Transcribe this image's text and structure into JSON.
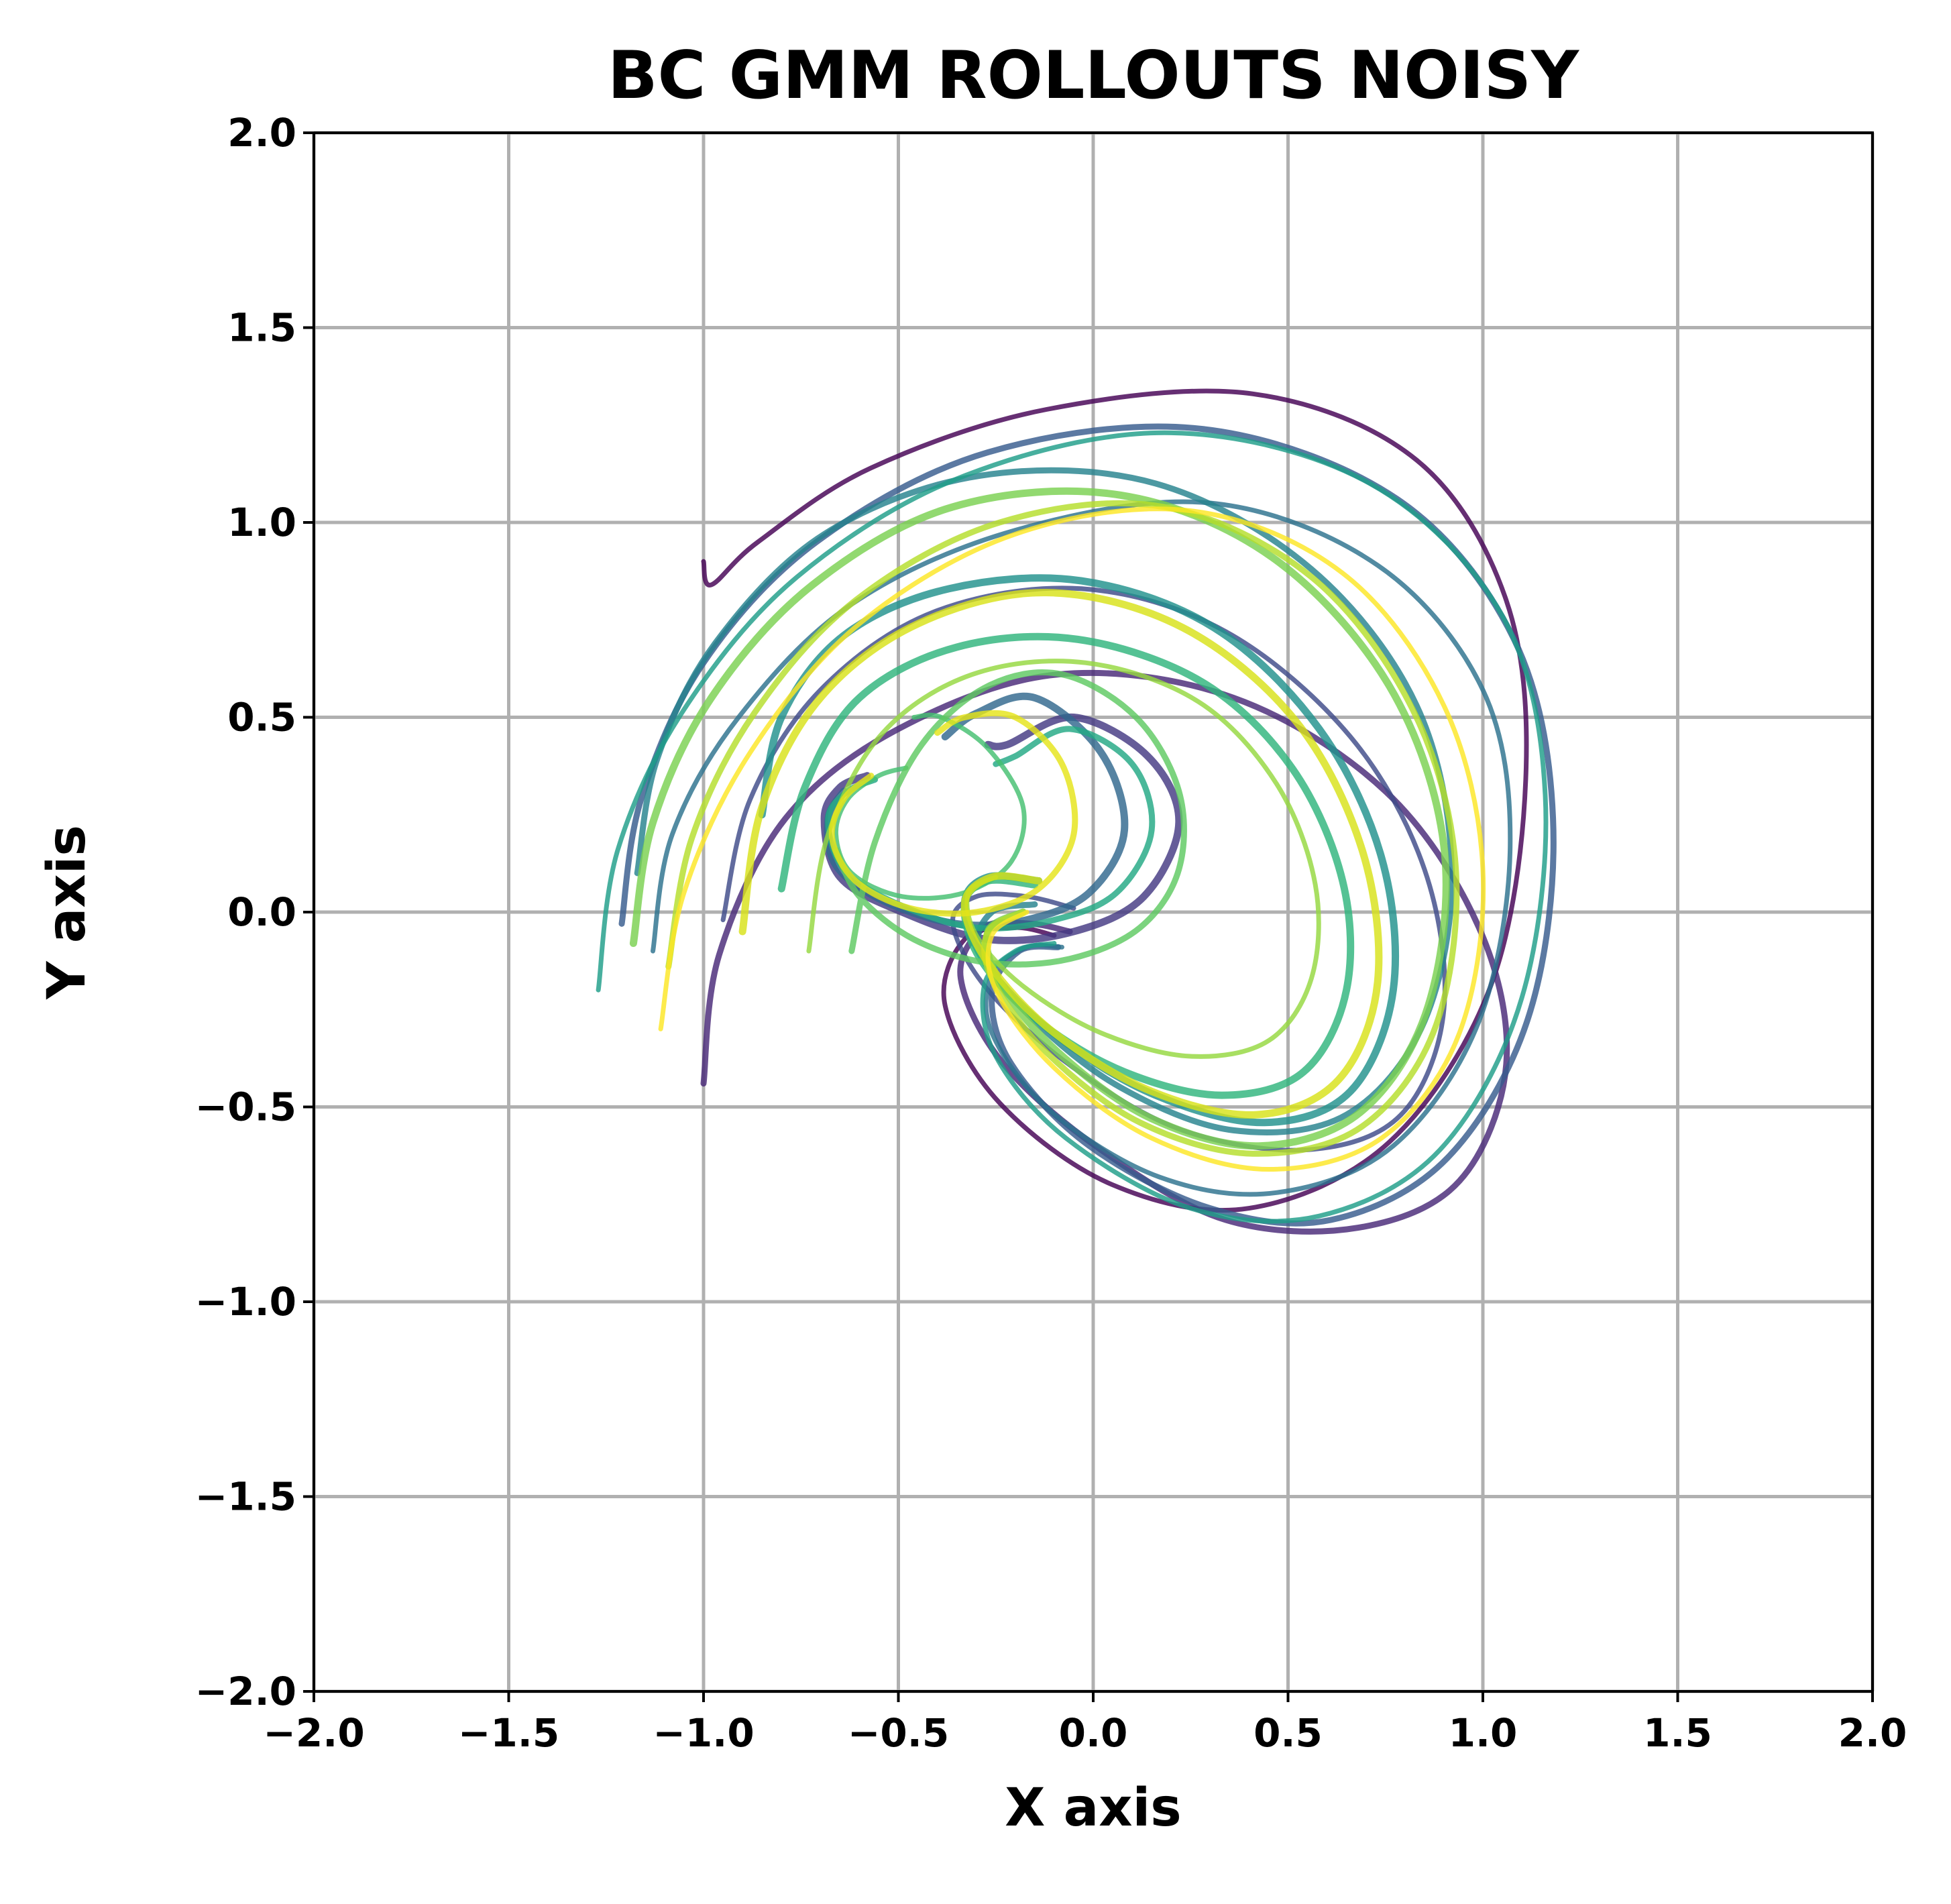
{
  "chart_data": {
    "type": "line",
    "title": "BC GMM ROLLOUTS NOISY",
    "xlabel": "X axis",
    "ylabel": "Y axis",
    "xlim": [
      -2.0,
      2.0
    ],
    "ylim": [
      -2.0,
      2.0
    ],
    "xticks": [
      -2.0,
      -1.5,
      -1.0,
      -0.5,
      0.0,
      0.5,
      1.0,
      1.5,
      2.0
    ],
    "yticks": [
      -2.0,
      -1.5,
      -1.0,
      -0.5,
      0.0,
      0.5,
      1.0,
      1.5,
      2.0
    ],
    "xtick_labels": [
      "−2.0",
      "−1.5",
      "−1.0",
      "−0.5",
      "0.0",
      "0.5",
      "1.0",
      "1.5",
      "2.0"
    ],
    "ytick_labels": [
      "−2.0",
      "−1.5",
      "−1.0",
      "−0.5",
      "0.0",
      "0.5",
      "1.0",
      "1.5",
      "2.0"
    ],
    "grid": true,
    "legend": "none",
    "colormap": "viridis",
    "vortex_center": [
      -0.48,
      0.26
    ],
    "series": [
      {
        "color": "#440154",
        "x": [
          -1.0,
          -0.98,
          -0.86,
          -0.57,
          -0.12,
          0.41,
          0.83,
          1.06,
          1.11,
          1.02,
          0.76,
          0.4,
          0.05,
          -0.24,
          -0.38,
          -0.33,
          -0.2,
          -0.1
        ],
        "y": [
          0.9,
          0.84,
          0.95,
          1.14,
          1.29,
          1.33,
          1.16,
          0.8,
          0.34,
          -0.19,
          -0.59,
          -0.76,
          -0.7,
          -0.49,
          -0.24,
          -0.07,
          -0.04,
          -0.06
        ]
      },
      {
        "color": "#482878",
        "x": [
          -1.0,
          -0.96,
          -0.79,
          -0.5,
          -0.09,
          0.36,
          0.75,
          0.99,
          1.06,
          0.94,
          0.68,
          0.34,
          0.02,
          -0.23,
          -0.34,
          -0.28,
          -0.16,
          -0.06
        ],
        "y": [
          -0.44,
          -0.11,
          0.24,
          0.47,
          0.61,
          0.55,
          0.31,
          -0.04,
          -0.39,
          -0.69,
          -0.81,
          -0.79,
          -0.61,
          -0.39,
          -0.17,
          -0.04,
          -0.03,
          -0.05
        ]
      },
      {
        "color": "#443983",
        "x": [
          -0.27,
          -0.22,
          -0.05,
          0.14,
          0.22,
          0.13,
          -0.05,
          -0.27,
          -0.49,
          -0.65,
          -0.69,
          -0.65,
          -0.58
        ],
        "y": [
          0.43,
          0.43,
          0.5,
          0.4,
          0.23,
          0.04,
          -0.05,
          -0.07,
          0.0,
          0.09,
          0.24,
          0.32,
          0.35
        ]
      },
      {
        "color": "#3e4a89",
        "x": [
          -0.95,
          -0.88,
          -0.7,
          -0.41,
          -0.03,
          0.34,
          0.66,
          0.85,
          0.9,
          0.79,
          0.55,
          0.23,
          -0.05,
          -0.27,
          -0.36,
          -0.3,
          -0.17,
          -0.05
        ],
        "y": [
          -0.02,
          0.29,
          0.57,
          0.77,
          0.83,
          0.72,
          0.45,
          0.11,
          -0.25,
          -0.52,
          -0.61,
          -0.56,
          -0.4,
          -0.2,
          -0.03,
          0.04,
          0.04,
          0.01
        ]
      },
      {
        "color": "#375b8d",
        "x": [
          -1.21,
          -1.16,
          -1.0,
          -0.71,
          -0.27,
          0.28,
          0.78,
          1.08,
          1.18,
          1.12,
          0.91,
          0.61,
          0.3,
          -0.01,
          -0.21,
          -0.26,
          -0.19,
          -0.09
        ],
        "y": [
          -0.03,
          0.29,
          0.64,
          0.95,
          1.18,
          1.24,
          1.06,
          0.7,
          0.24,
          -0.26,
          -0.63,
          -0.79,
          -0.76,
          -0.6,
          -0.39,
          -0.21,
          -0.1,
          -0.09
        ]
      },
      {
        "color": "#31688e",
        "x": [
          -0.38,
          -0.3,
          -0.15,
          0.02,
          0.08,
          -0.01,
          -0.17,
          -0.35,
          -0.54,
          -0.66,
          -0.68,
          -0.64
        ],
        "y": [
          0.45,
          0.51,
          0.55,
          0.41,
          0.21,
          0.05,
          -0.02,
          -0.03,
          0.03,
          0.12,
          0.24,
          0.31
        ]
      },
      {
        "color": "#2c728e",
        "x": [
          -1.13,
          -1.08,
          -0.91,
          -0.62,
          -0.2,
          0.3,
          0.73,
          1.0,
          1.07,
          0.99,
          0.77,
          0.47,
          0.17,
          -0.11,
          -0.26,
          -0.26,
          -0.17,
          -0.08
        ],
        "y": [
          -0.1,
          0.2,
          0.5,
          0.79,
          0.98,
          1.05,
          0.89,
          0.57,
          0.17,
          -0.28,
          -0.6,
          -0.72,
          -0.68,
          -0.51,
          -0.31,
          -0.16,
          -0.09,
          -0.09
        ]
      },
      {
        "color": "#26828e",
        "x": [
          -1.17,
          -1.12,
          -0.97,
          -0.69,
          -0.29,
          0.16,
          0.56,
          0.83,
          0.92,
          0.85,
          0.65,
          0.36,
          0.07,
          -0.16,
          -0.29,
          -0.26,
          -0.15
        ],
        "y": [
          0.1,
          0.39,
          0.69,
          0.97,
          1.12,
          1.1,
          0.88,
          0.53,
          0.11,
          -0.28,
          -0.52,
          -0.56,
          -0.45,
          -0.27,
          -0.1,
          0.0,
          0.02
        ]
      },
      {
        "color": "#21918c",
        "x": [
          -0.85,
          -0.8,
          -0.64,
          -0.37,
          -0.03,
          0.31,
          0.58,
          0.74,
          0.77,
          0.66,
          0.44,
          0.16,
          -0.09,
          -0.27,
          -0.33,
          -0.27,
          -0.14
        ],
        "y": [
          0.25,
          0.5,
          0.71,
          0.83,
          0.85,
          0.73,
          0.47,
          0.14,
          -0.2,
          -0.46,
          -0.54,
          -0.47,
          -0.32,
          -0.14,
          0.02,
          0.09,
          0.08
        ]
      },
      {
        "color": "#1f9e89",
        "x": [
          -1.27,
          -1.22,
          -1.05,
          -0.76,
          -0.33,
          0.2,
          0.71,
          1.05,
          1.16,
          1.1,
          0.89,
          0.58,
          0.25,
          -0.07,
          -0.25,
          -0.28,
          -0.2,
          -0.1
        ],
        "y": [
          -0.2,
          0.16,
          0.52,
          0.86,
          1.12,
          1.23,
          1.1,
          0.76,
          0.3,
          -0.22,
          -0.61,
          -0.78,
          -0.76,
          -0.58,
          -0.37,
          -0.19,
          -0.1,
          -0.08
        ]
      },
      {
        "color": "#22a884",
        "x": [
          -0.25,
          -0.2,
          -0.06,
          0.1,
          0.15,
          0.06,
          -0.1,
          -0.3,
          -0.5,
          -0.64,
          -0.68,
          -0.63,
          -0.56
        ],
        "y": [
          0.38,
          0.4,
          0.47,
          0.38,
          0.21,
          0.05,
          -0.02,
          -0.04,
          0.02,
          0.11,
          0.24,
          0.31,
          0.34
        ]
      },
      {
        "color": "#2fb47c",
        "x": [
          -0.8,
          -0.74,
          -0.6,
          -0.35,
          -0.04,
          0.28,
          0.51,
          0.64,
          0.65,
          0.54,
          0.33,
          0.08,
          -0.14,
          -0.29,
          -0.33,
          -0.27,
          -0.15
        ],
        "y": [
          0.06,
          0.32,
          0.55,
          0.68,
          0.7,
          0.59,
          0.37,
          0.08,
          -0.2,
          -0.41,
          -0.47,
          -0.41,
          -0.28,
          -0.12,
          0.02,
          0.08,
          0.07
        ]
      },
      {
        "color": "#44bf70",
        "x": [
          -0.46,
          -0.39,
          -0.27,
          -0.18,
          -0.21,
          -0.33,
          -0.49,
          -0.62,
          -0.66,
          -0.63,
          -0.55,
          -0.48
        ],
        "y": [
          0.5,
          0.5,
          0.42,
          0.27,
          0.13,
          0.05,
          0.04,
          0.1,
          0.2,
          0.29,
          0.35,
          0.37
        ]
      },
      {
        "color": "#5ec962",
        "x": [
          -0.62,
          -0.56,
          -0.44,
          -0.27,
          -0.08,
          0.11,
          0.22,
          0.22,
          0.12,
          -0.06,
          -0.27,
          -0.46,
          -0.6,
          -0.66
        ],
        "y": [
          -0.1,
          0.18,
          0.43,
          0.58,
          0.61,
          0.5,
          0.31,
          0.11,
          -0.04,
          -0.12,
          -0.13,
          -0.07,
          0.04,
          0.16
        ]
      },
      {
        "color": "#7ad151",
        "x": [
          -1.18,
          -1.13,
          -0.98,
          -0.72,
          -0.36,
          0.07,
          0.46,
          0.76,
          0.9,
          0.86,
          0.69,
          0.43,
          0.15,
          -0.09,
          -0.24,
          -0.27,
          -0.18
        ],
        "y": [
          -0.08,
          0.23,
          0.55,
          0.84,
          1.04,
          1.07,
          0.91,
          0.58,
          0.17,
          -0.24,
          -0.51,
          -0.6,
          -0.53,
          -0.36,
          -0.18,
          -0.05,
          0.0
        ]
      },
      {
        "color": "#95d840",
        "x": [
          -0.73,
          -0.68,
          -0.54,
          -0.31,
          -0.02,
          0.27,
          0.47,
          0.57,
          0.56,
          0.45,
          0.25,
          0.02,
          -0.18,
          -0.3,
          -0.32,
          -0.25
        ],
        "y": [
          -0.1,
          0.2,
          0.46,
          0.61,
          0.64,
          0.54,
          0.33,
          0.07,
          -0.17,
          -0.33,
          -0.37,
          -0.31,
          -0.19,
          -0.06,
          0.05,
          0.09
        ]
      },
      {
        "color": "#b5de2b",
        "x": [
          -1.09,
          -1.03,
          -0.87,
          -0.61,
          -0.24,
          0.18,
          0.56,
          0.82,
          0.93,
          0.88,
          0.69,
          0.41,
          0.12,
          -0.12,
          -0.26,
          -0.27,
          -0.18
        ],
        "y": [
          -0.14,
          0.19,
          0.51,
          0.8,
          1.0,
          1.04,
          0.86,
          0.52,
          0.12,
          -0.29,
          -0.55,
          -0.62,
          -0.54,
          -0.36,
          -0.17,
          -0.05,
          0.0
        ]
      },
      {
        "color": "#d8e219",
        "x": [
          -0.9,
          -0.85,
          -0.7,
          -0.45,
          -0.12,
          0.23,
          0.52,
          0.69,
          0.73,
          0.63,
          0.42,
          0.15,
          -0.1,
          -0.27,
          -0.33,
          -0.26,
          -0.14
        ],
        "y": [
          -0.05,
          0.27,
          0.55,
          0.74,
          0.82,
          0.73,
          0.49,
          0.16,
          -0.18,
          -0.43,
          -0.52,
          -0.46,
          -0.31,
          -0.13,
          0.02,
          0.09,
          0.08
        ]
      },
      {
        "color": "#fde725",
        "x": [
          -1.11,
          -1.05,
          -0.88,
          -0.6,
          -0.2,
          0.25,
          0.64,
          0.9,
          1.0,
          0.94,
          0.74,
          0.45,
          0.15,
          -0.1,
          -0.25,
          -0.26,
          -0.17
        ],
        "y": [
          -0.3,
          0.05,
          0.41,
          0.74,
          0.97,
          1.03,
          0.87,
          0.53,
          0.11,
          -0.31,
          -0.58,
          -0.66,
          -0.58,
          -0.4,
          -0.2,
          -0.06,
          0.0
        ]
      },
      {
        "color": "#e5e419",
        "x": [
          -0.4,
          -0.33,
          -0.2,
          -0.08,
          -0.05,
          -0.14,
          -0.3,
          -0.47,
          -0.61,
          -0.67,
          -0.64,
          -0.57
        ],
        "y": [
          0.46,
          0.5,
          0.5,
          0.38,
          0.2,
          0.06,
          0.0,
          0.01,
          0.08,
          0.19,
          0.29,
          0.35
        ]
      }
    ]
  }
}
